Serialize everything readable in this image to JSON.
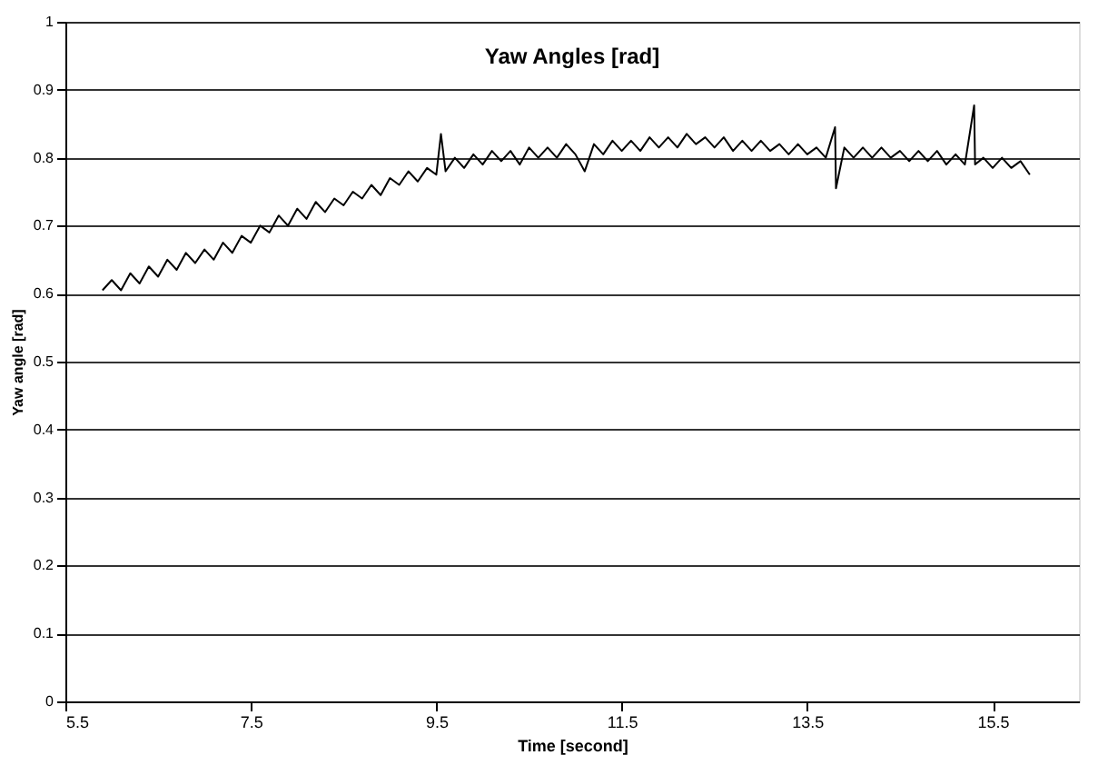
{
  "chart_data": {
    "type": "line",
    "title": "Yaw Angles [rad]",
    "xlabel": "Time [second]",
    "ylabel": "Yaw angle [rad]",
    "xlim": [
      5.5,
      16.43
    ],
    "xticks": [
      5.5,
      7.5,
      9.5,
      11.5,
      13.5,
      15.5
    ],
    "ylim": [
      0,
      1
    ],
    "yticks": [
      0,
      0.1,
      0.2,
      0.3,
      0.4,
      0.5,
      0.6,
      0.7,
      0.8,
      0.9,
      1
    ],
    "grid": "y",
    "marker": "none",
    "line_style": "solid",
    "series": [
      {
        "color": "#000000",
        "x": [
          5.9,
          6.0,
          6.1,
          6.2,
          6.3,
          6.4,
          6.5,
          6.6,
          6.7,
          6.8,
          6.9,
          7.0,
          7.1,
          7.2,
          7.3,
          7.4,
          7.5,
          7.6,
          7.7,
          7.8,
          7.9,
          8.0,
          8.1,
          8.2,
          8.3,
          8.4,
          8.5,
          8.6,
          8.7,
          8.8,
          8.9,
          9.0,
          9.1,
          9.2,
          9.3,
          9.4,
          9.5,
          9.55,
          9.6,
          9.7,
          9.8,
          9.9,
          10.0,
          10.1,
          10.2,
          10.3,
          10.4,
          10.5,
          10.6,
          10.7,
          10.8,
          10.9,
          11.0,
          11.1,
          11.2,
          11.3,
          11.4,
          11.5,
          11.6,
          11.7,
          11.8,
          11.9,
          12.0,
          12.1,
          12.2,
          12.3,
          12.4,
          12.5,
          12.6,
          12.7,
          12.8,
          12.9,
          13.0,
          13.1,
          13.2,
          13.3,
          13.4,
          13.5,
          13.6,
          13.7,
          13.8,
          13.81,
          13.9,
          14.0,
          14.1,
          14.2,
          14.3,
          14.4,
          14.5,
          14.6,
          14.7,
          14.8,
          14.9,
          15.0,
          15.1,
          15.2,
          15.3,
          15.31,
          15.4,
          15.5,
          15.6,
          15.7,
          15.8,
          15.9
        ],
        "values": [
          0.605,
          0.62,
          0.605,
          0.63,
          0.615,
          0.64,
          0.625,
          0.65,
          0.635,
          0.66,
          0.645,
          0.665,
          0.65,
          0.675,
          0.66,
          0.685,
          0.675,
          0.7,
          0.69,
          0.715,
          0.7,
          0.725,
          0.71,
          0.735,
          0.72,
          0.74,
          0.73,
          0.75,
          0.74,
          0.76,
          0.745,
          0.77,
          0.76,
          0.78,
          0.765,
          0.785,
          0.775,
          0.835,
          0.78,
          0.8,
          0.785,
          0.805,
          0.79,
          0.81,
          0.795,
          0.81,
          0.79,
          0.815,
          0.8,
          0.815,
          0.8,
          0.82,
          0.805,
          0.78,
          0.82,
          0.805,
          0.825,
          0.81,
          0.825,
          0.81,
          0.83,
          0.815,
          0.83,
          0.815,
          0.835,
          0.82,
          0.83,
          0.815,
          0.83,
          0.81,
          0.825,
          0.81,
          0.825,
          0.81,
          0.82,
          0.805,
          0.82,
          0.805,
          0.815,
          0.8,
          0.845,
          0.755,
          0.815,
          0.8,
          0.815,
          0.8,
          0.815,
          0.8,
          0.81,
          0.795,
          0.81,
          0.795,
          0.81,
          0.79,
          0.805,
          0.79,
          0.877,
          0.79,
          0.8,
          0.785,
          0.8,
          0.785,
          0.795,
          0.775
        ]
      }
    ]
  }
}
